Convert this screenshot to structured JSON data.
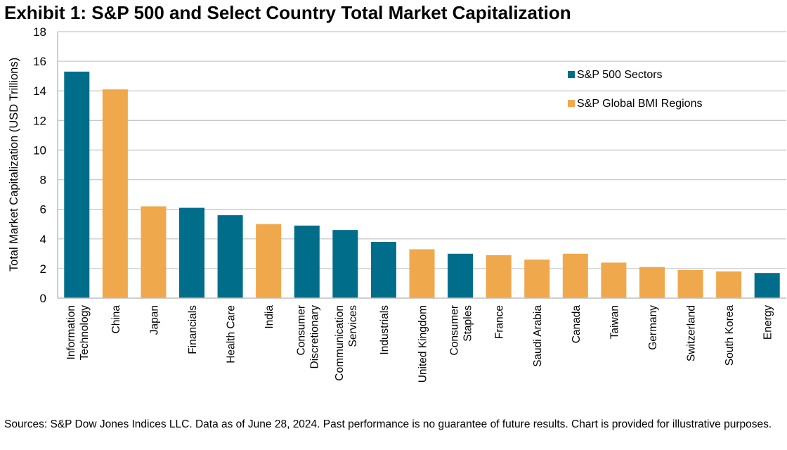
{
  "title": "Exhibit 1: S&P 500 and Select Country Total Market Capitalization",
  "footnote": "Sources: S&P Dow Jones Indices LLC. Data as of June 28, 2024. Past performance is no guarantee of future results. Chart is provided for illustrative purposes.",
  "chart_data": {
    "type": "bar",
    "title": "Exhibit 1: S&P 500 and Select Country Total Market Capitalization",
    "xlabel": "",
    "ylabel": "Total Market Capitalization (USD Trillions)",
    "ylim": [
      0,
      18
    ],
    "yticks": [
      0,
      2,
      4,
      6,
      8,
      10,
      12,
      14,
      16,
      18
    ],
    "grid": true,
    "legend_position": "top-right",
    "series_colors": {
      "S&P 500 Sectors": "#006E8A",
      "S&P Global BMI Regions": "#F0A84C"
    },
    "legend": [
      "S&P 500 Sectors",
      "S&P Global BMI Regions"
    ],
    "categories": [
      [
        "Information",
        "Technology"
      ],
      [
        "China"
      ],
      [
        "Japan"
      ],
      [
        "Financials"
      ],
      [
        "Health Care"
      ],
      [
        "India"
      ],
      [
        "Consumer",
        "Discretionary"
      ],
      [
        "Communication",
        "Services"
      ],
      [
        "Industrials"
      ],
      [
        "United Kingdom"
      ],
      [
        "Consumer",
        "Staples"
      ],
      [
        "France"
      ],
      [
        "Saudi Arabia"
      ],
      [
        "Canada"
      ],
      [
        "Taiwan"
      ],
      [
        "Germany"
      ],
      [
        "Switzerland"
      ],
      [
        "South Korea"
      ],
      [
        "Energy"
      ]
    ],
    "series_of_category": [
      "S&P 500 Sectors",
      "S&P Global BMI Regions",
      "S&P Global BMI Regions",
      "S&P 500 Sectors",
      "S&P 500 Sectors",
      "S&P Global BMI Regions",
      "S&P 500 Sectors",
      "S&P 500 Sectors",
      "S&P 500 Sectors",
      "S&P Global BMI Regions",
      "S&P 500 Sectors",
      "S&P Global BMI Regions",
      "S&P Global BMI Regions",
      "S&P Global BMI Regions",
      "S&P Global BMI Regions",
      "S&P Global BMI Regions",
      "S&P Global BMI Regions",
      "S&P Global BMI Regions",
      "S&P 500 Sectors"
    ],
    "values": [
      15.3,
      14.1,
      6.2,
      6.1,
      5.6,
      5.0,
      4.9,
      4.6,
      3.8,
      3.3,
      3.0,
      2.9,
      2.6,
      3.0,
      2.4,
      2.1,
      1.9,
      1.8,
      1.7
    ]
  }
}
